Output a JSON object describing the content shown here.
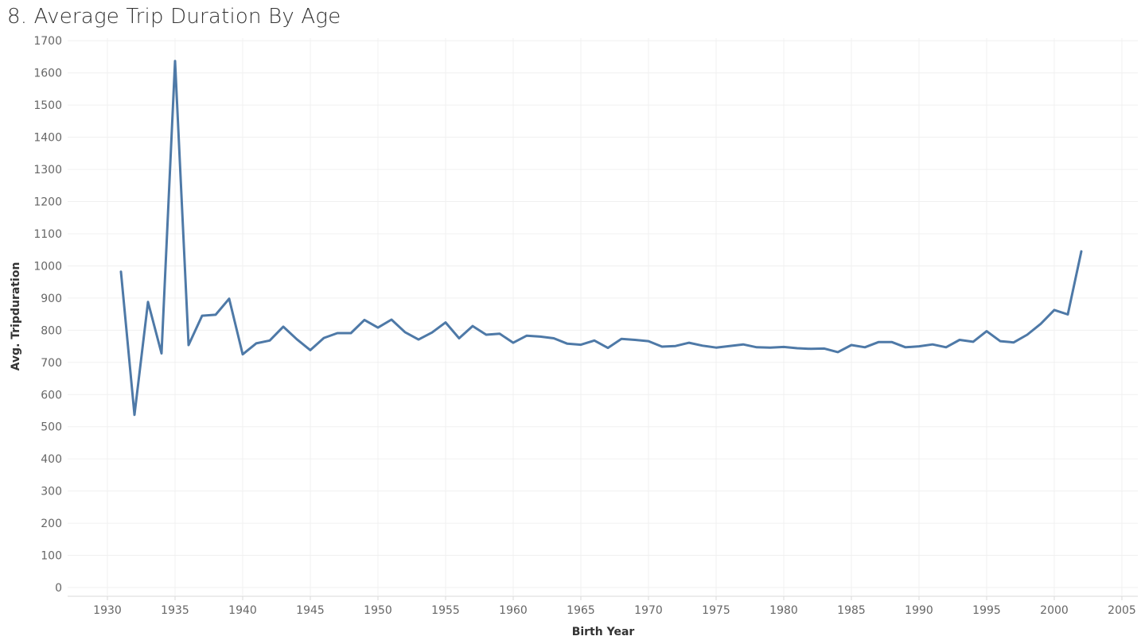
{
  "title": "8. Average Trip Duration By Age",
  "chart_data": {
    "type": "line",
    "title": "8. Average Trip Duration By Age",
    "xlabel": "Birth Year",
    "ylabel": "Avg. Tripduration",
    "xlim": [
      1926,
      2006
    ],
    "ylim": [
      -25,
      1700
    ],
    "x_ticks": [
      1930,
      1935,
      1940,
      1945,
      1950,
      1955,
      1960,
      1965,
      1970,
      1975,
      1980,
      1985,
      1990,
      1995,
      2000,
      2005
    ],
    "y_ticks": [
      0,
      100,
      200,
      300,
      400,
      500,
      600,
      700,
      800,
      900,
      1000,
      1100,
      1200,
      1300,
      1400,
      1500,
      1600,
      1700
    ],
    "grid": true,
    "line_color": "#4e79a7",
    "series": [
      {
        "x": [
          1931,
          1932,
          1933,
          1934,
          1935,
          1936,
          1937,
          1938,
          1939,
          1940,
          1941,
          1942,
          1943,
          1944,
          1945,
          1946,
          1947,
          1948,
          1949,
          1950,
          1951,
          1952,
          1953,
          1954,
          1955,
          1956,
          1957,
          1958,
          1959,
          1960,
          1961,
          1962,
          1963,
          1964,
          1965,
          1966,
          1967,
          1968,
          1969,
          1970,
          1971,
          1972,
          1973,
          1974,
          1975,
          1976,
          1977,
          1978,
          1979,
          1980,
          1981,
          1982,
          1983,
          1984,
          1985,
          1986,
          1987,
          1988,
          1989,
          1990,
          1991,
          1992,
          1993,
          1994,
          1995,
          1996,
          1997,
          1998,
          1999,
          2000,
          2001,
          2002
        ],
        "values": [
          982,
          537,
          888,
          728,
          1637,
          754,
          845,
          848,
          898,
          725,
          759,
          768,
          811,
          772,
          738,
          776,
          791,
          791,
          832,
          808,
          833,
          794,
          771,
          793,
          824,
          775,
          813,
          786,
          789,
          761,
          783,
          780,
          775,
          758,
          755,
          768,
          745,
          773,
          770,
          766,
          749,
          751,
          761,
          752,
          746,
          751,
          756,
          747,
          746,
          748,
          744,
          742,
          743,
          732,
          754,
          747,
          763,
          763,
          747,
          750,
          756,
          747,
          770,
          764,
          797,
          766,
          762,
          786,
          820,
          863,
          849,
          1045
        ]
      }
    ]
  }
}
